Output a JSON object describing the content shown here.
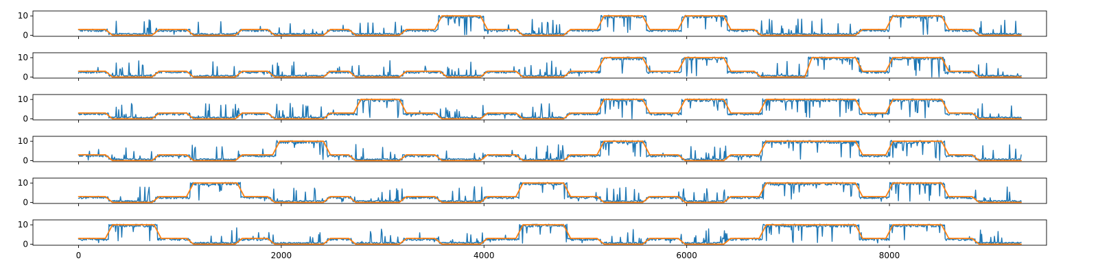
{
  "chart_data": {
    "type": "line",
    "title": "",
    "xlabel": "",
    "ylabel": "",
    "xlim": [
      -450,
      9550
    ],
    "ylim": [
      -0.55,
      12.55
    ],
    "x_ticks": [
      0,
      2000,
      4000,
      6000,
      8000
    ],
    "x_tick_labels": [
      "0",
      "2000",
      "4000",
      "6000",
      "8000"
    ],
    "y_ticks": [
      0,
      10
    ],
    "y_tick_labels": [
      "0",
      "10"
    ],
    "x_tick_labels_shown_on": "bottom panel only",
    "grid": false,
    "legend": "none",
    "series_colors": [
      "#1f77b4",
      "#ff7f0e"
    ],
    "x_max": 9300,
    "panels": [
      {
        "segments": [
          [
            0,
            3
          ],
          [
            300,
            0
          ],
          [
            760,
            3
          ],
          [
            1100,
            0
          ],
          [
            1580,
            3
          ],
          [
            1900,
            0
          ],
          [
            2450,
            3
          ],
          [
            2700,
            0
          ],
          [
            3200,
            3
          ],
          [
            3550,
            10
          ],
          [
            4000,
            3
          ],
          [
            4350,
            0
          ],
          [
            4820,
            3
          ],
          [
            5150,
            10
          ],
          [
            5600,
            3
          ],
          [
            5950,
            10
          ],
          [
            6400,
            3
          ],
          [
            6700,
            0
          ],
          [
            7700,
            3
          ],
          [
            8000,
            10
          ],
          [
            8550,
            3
          ],
          [
            8850,
            0
          ]
        ]
      },
      {
        "segments": [
          [
            0,
            3
          ],
          [
            300,
            0
          ],
          [
            760,
            3
          ],
          [
            1100,
            0
          ],
          [
            1580,
            3
          ],
          [
            1900,
            0
          ],
          [
            2450,
            3
          ],
          [
            2700,
            0
          ],
          [
            3200,
            3
          ],
          [
            3600,
            0
          ],
          [
            4000,
            3
          ],
          [
            4350,
            0
          ],
          [
            4820,
            3
          ],
          [
            5150,
            10
          ],
          [
            5600,
            3
          ],
          [
            5950,
            10
          ],
          [
            6400,
            3
          ],
          [
            6700,
            0
          ],
          [
            7200,
            10
          ],
          [
            7700,
            3
          ],
          [
            8000,
            10
          ],
          [
            8550,
            3
          ],
          [
            8850,
            0
          ]
        ]
      },
      {
        "segments": [
          [
            0,
            3
          ],
          [
            300,
            0
          ],
          [
            760,
            3
          ],
          [
            1100,
            0
          ],
          [
            1580,
            3
          ],
          [
            1900,
            0
          ],
          [
            2450,
            3
          ],
          [
            2750,
            10
          ],
          [
            3200,
            3
          ],
          [
            3550,
            0
          ],
          [
            4000,
            3
          ],
          [
            4350,
            0
          ],
          [
            4820,
            3
          ],
          [
            5150,
            10
          ],
          [
            5600,
            3
          ],
          [
            5950,
            10
          ],
          [
            6400,
            3
          ],
          [
            6750,
            10
          ],
          [
            7700,
            3
          ],
          [
            8000,
            10
          ],
          [
            8550,
            3
          ],
          [
            8850,
            0
          ]
        ]
      },
      {
        "segments": [
          [
            0,
            3
          ],
          [
            300,
            0
          ],
          [
            760,
            3
          ],
          [
            1100,
            0
          ],
          [
            1580,
            3
          ],
          [
            1950,
            10
          ],
          [
            2450,
            3
          ],
          [
            2700,
            0
          ],
          [
            3200,
            3
          ],
          [
            3550,
            0
          ],
          [
            4000,
            3
          ],
          [
            4350,
            0
          ],
          [
            4820,
            3
          ],
          [
            5150,
            10
          ],
          [
            5600,
            3
          ],
          [
            5950,
            0
          ],
          [
            6400,
            3
          ],
          [
            6750,
            10
          ],
          [
            7700,
            3
          ],
          [
            8000,
            10
          ],
          [
            8550,
            3
          ],
          [
            8850,
            0
          ]
        ]
      },
      {
        "segments": [
          [
            0,
            3
          ],
          [
            300,
            0
          ],
          [
            760,
            3
          ],
          [
            1100,
            10
          ],
          [
            1600,
            3
          ],
          [
            1900,
            0
          ],
          [
            2450,
            3
          ],
          [
            2700,
            0
          ],
          [
            3200,
            3
          ],
          [
            3550,
            0
          ],
          [
            4000,
            3
          ],
          [
            4350,
            10
          ],
          [
            4820,
            3
          ],
          [
            5150,
            0
          ],
          [
            5600,
            3
          ],
          [
            5950,
            0
          ],
          [
            6400,
            3
          ],
          [
            6750,
            10
          ],
          [
            7700,
            3
          ],
          [
            8000,
            10
          ],
          [
            8550,
            3
          ],
          [
            8850,
            0
          ]
        ]
      },
      {
        "segments": [
          [
            0,
            3
          ],
          [
            300,
            10
          ],
          [
            780,
            3
          ],
          [
            1100,
            0
          ],
          [
            1580,
            3
          ],
          [
            1900,
            0
          ],
          [
            2450,
            3
          ],
          [
            2700,
            0
          ],
          [
            3200,
            3
          ],
          [
            3550,
            0
          ],
          [
            4000,
            3
          ],
          [
            4350,
            10
          ],
          [
            4820,
            3
          ],
          [
            5150,
            0
          ],
          [
            5600,
            3
          ],
          [
            5950,
            0
          ],
          [
            6400,
            3
          ],
          [
            6750,
            10
          ],
          [
            7700,
            3
          ],
          [
            8000,
            10
          ],
          [
            8550,
            3
          ],
          [
            8850,
            0
          ]
        ]
      }
    ]
  }
}
